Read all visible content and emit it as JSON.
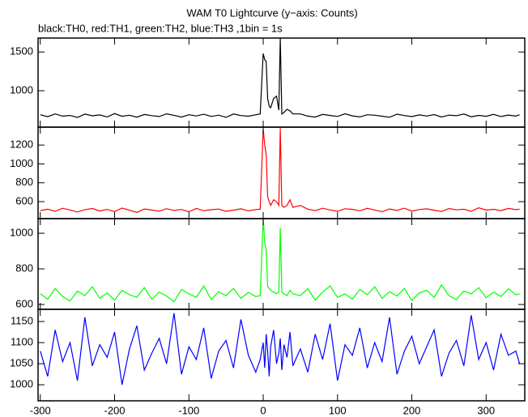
{
  "chart_data": {
    "type": "line",
    "title": "WAM T0 Lightcurve (y−axis: Counts)",
    "subtitle": "black:TH0, red:TH1, green:TH2, blue:TH3 ,1bin = 1s",
    "x": [
      -300,
      -290,
      -280,
      -270,
      -260,
      -250,
      -240,
      -230,
      -220,
      -210,
      -200,
      -190,
      -180,
      -170,
      -160,
      -150,
      -140,
      -130,
      -120,
      -110,
      -100,
      -90,
      -80,
      -70,
      -60,
      -50,
      -40,
      -30,
      -20,
      -10,
      -4,
      0,
      2,
      4,
      6,
      8,
      10,
      14,
      18,
      21,
      23,
      25,
      28,
      32,
      36,
      40,
      50,
      60,
      70,
      80,
      90,
      100,
      110,
      120,
      130,
      140,
      150,
      160,
      170,
      180,
      190,
      200,
      210,
      220,
      230,
      240,
      250,
      260,
      270,
      280,
      290,
      300,
      310,
      320,
      330,
      340,
      345
    ],
    "xlim": [
      -303,
      352
    ],
    "xticks": [
      -300,
      -200,
      -100,
      0,
      100,
      200,
      300
    ],
    "series": [
      {
        "color": "#000000",
        "ylim": [
          530,
          1680
        ],
        "yticks": [
          1000,
          1500
        ],
        "values": [
          690,
          665,
          700,
          672,
          681,
          655,
          698,
          676,
          688,
          662,
          705,
          670,
          684,
          659,
          693,
          678,
          667,
          701,
          683,
          660,
          690,
          674,
          696,
          668,
          685,
          657,
          699,
          680,
          671,
          689,
          700,
          1480,
          1400,
          1380,
          900,
          800,
          780,
          900,
          930,
          750,
          1680,
          700,
          720,
          760,
          740,
          700,
          700,
          672,
          660,
          694,
          681,
          668,
          703,
          675,
          662,
          690,
          684,
          671,
          658,
          697,
          679,
          666,
          688,
          673,
          692,
          661,
          685,
          677,
          699,
          664,
          682,
          670,
          694,
          667,
          686,
          672,
          690
        ]
      },
      {
        "color": "#ff0000",
        "ylim": [
          420,
          1390
        ],
        "yticks": [
          600,
          800,
          1000,
          1200
        ],
        "values": [
          505,
          520,
          498,
          530,
          512,
          490,
          515,
          527,
          501,
          518,
          495,
          532,
          509,
          486,
          522,
          511,
          499,
          526,
          507,
          517,
          493,
          528,
          504,
          514,
          521,
          497,
          510,
          524,
          502,
          516,
          520,
          1370,
          1200,
          1100,
          650,
          600,
          560,
          620,
          600,
          560,
          1380,
          560,
          540,
          560,
          620,
          540,
          560,
          520,
          505,
          530,
          512,
          498,
          525,
          518,
          503,
          529,
          511,
          494,
          522,
          507,
          531,
          500,
          516,
          524,
          509,
          495,
          527,
          513,
          520,
          498,
          534,
          510,
          519,
          505,
          528,
          515,
          520
        ]
      },
      {
        "color": "#00ff00",
        "ylim": [
          573,
          1082
        ],
        "yticks": [
          600,
          800,
          1000
        ],
        "values": [
          660,
          630,
          690,
          645,
          620,
          675,
          650,
          700,
          635,
          665,
          625,
          680,
          655,
          640,
          695,
          630,
          670,
          648,
          615,
          685,
          660,
          640,
          705,
          628,
          672,
          650,
          690,
          635,
          668,
          645,
          650,
          1080,
          950,
          900,
          700,
          690,
          680,
          670,
          660,
          670,
          1030,
          670,
          660,
          650,
          680,
          660,
          650,
          690,
          625,
          670,
          705,
          640,
          660,
          630,
          685,
          655,
          700,
          635,
          672,
          648,
          690,
          622,
          665,
          680,
          640,
          710,
          650,
          628,
          676,
          660,
          695,
          638,
          670,
          645,
          688,
          655,
          660
        ]
      },
      {
        "color": "#0000ff",
        "ylim": [
          962,
          1179
        ],
        "yticks": [
          1000,
          1050,
          1100,
          1150
        ],
        "values": [
          1080,
          1020,
          1130,
          1055,
          1100,
          1010,
          1160,
          1045,
          1095,
          1065,
          1125,
          1000,
          1085,
          1140,
          1035,
          1075,
          1110,
          1050,
          1170,
          1025,
          1090,
          1060,
          1135,
          1015,
          1080,
          1105,
          1040,
          1155,
          1070,
          1030,
          1060,
          1100,
          1040,
          1120,
          1080,
          1020,
          1090,
          1130,
          1050,
          1075,
          1110,
          1035,
          1095,
          1065,
          1125,
          1045,
          1085,
          1030,
          1120,
          1060,
          1145,
          1010,
          1095,
          1070,
          1135,
          1040,
          1100,
          1055,
          1160,
          1025,
          1080,
          1115,
          1050,
          1090,
          1130,
          1020,
          1075,
          1105,
          1045,
          1165,
          1060,
          1100,
          1035,
          1120,
          1070,
          1080,
          1050
        ]
      }
    ]
  }
}
